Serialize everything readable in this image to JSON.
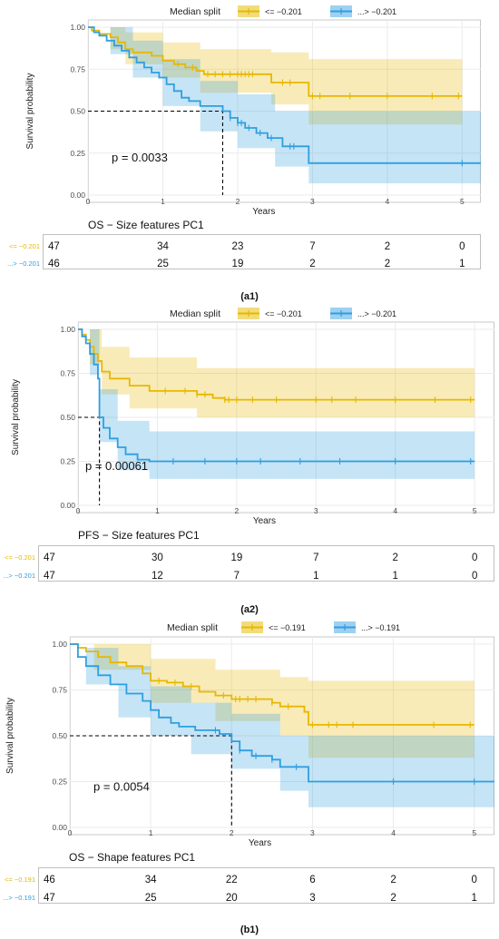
{
  "colors": {
    "group_low": "#E7B800",
    "group_high": "#2E9FDF",
    "band_low": "#F2DC7A",
    "band_high": "#9FD0F1"
  },
  "chart_data": [
    {
      "id": "a1",
      "type": "line",
      "subtype": "kaplan-meier",
      "legend_title": "Median split",
      "legend": [
        "<= −0.201",
        "...> −0.201"
      ],
      "xlabel": "Years",
      "ylabel": "Survival probability",
      "xlim": [
        0,
        5.25
      ],
      "ylim": [
        0,
        1
      ],
      "x_ticks": [
        0,
        1,
        2,
        3,
        4,
        5
      ],
      "y_ticks": [
        "0.00",
        "0.25",
        "0.50",
        "0.75",
        "1.00"
      ],
      "pvalue": "p = 0.0033",
      "median_high": 1.8,
      "series": [
        {
          "name": "<= −0.201",
          "color": "#E7B800",
          "steps": [
            [
              0,
              1.0
            ],
            [
              0.05,
              0.98
            ],
            [
              0.15,
              0.96
            ],
            [
              0.3,
              0.94
            ],
            [
              0.4,
              0.91
            ],
            [
              0.5,
              0.87
            ],
            [
              0.6,
              0.85
            ],
            [
              0.85,
              0.83
            ],
            [
              1.0,
              0.8
            ],
            [
              1.15,
              0.78
            ],
            [
              1.3,
              0.76
            ],
            [
              1.45,
              0.74
            ],
            [
              1.55,
              0.72
            ],
            [
              2.3,
              0.72
            ],
            [
              2.45,
              0.67
            ],
            [
              2.95,
              0.59
            ],
            [
              5.0,
              0.59
            ]
          ],
          "ci_upper": [
            [
              0,
              1.0
            ],
            [
              0.3,
              1.0
            ],
            [
              0.5,
              0.97
            ],
            [
              1.0,
              0.91
            ],
            [
              1.5,
              0.87
            ],
            [
              2.45,
              0.85
            ],
            [
              2.95,
              0.81
            ],
            [
              5.0,
              0.81
            ]
          ],
          "ci_lower": [
            [
              0,
              1.0
            ],
            [
              0.3,
              0.87
            ],
            [
              0.5,
              0.78
            ],
            [
              1.0,
              0.7
            ],
            [
              1.5,
              0.61
            ],
            [
              2.45,
              0.54
            ],
            [
              2.95,
              0.42
            ],
            [
              5.0,
              0.42
            ]
          ],
          "censor": [
            1.2,
            1.4,
            1.6,
            1.7,
            1.8,
            1.9,
            2.0,
            2.05,
            2.1,
            2.15,
            2.2,
            2.6,
            2.7,
            3.0,
            3.1,
            3.5,
            4.0,
            4.6,
            4.95
          ]
        },
        {
          "name": "...> −0.201",
          "color": "#2E9FDF",
          "steps": [
            [
              0,
              1.0
            ],
            [
              0.08,
              0.97
            ],
            [
              0.15,
              0.95
            ],
            [
              0.25,
              0.92
            ],
            [
              0.35,
              0.89
            ],
            [
              0.45,
              0.86
            ],
            [
              0.55,
              0.82
            ],
            [
              0.65,
              0.79
            ],
            [
              0.75,
              0.76
            ],
            [
              0.85,
              0.73
            ],
            [
              0.95,
              0.7
            ],
            [
              1.05,
              0.66
            ],
            [
              1.15,
              0.62
            ],
            [
              1.25,
              0.58
            ],
            [
              1.35,
              0.56
            ],
            [
              1.5,
              0.53
            ],
            [
              1.8,
              0.5
            ],
            [
              1.9,
              0.46
            ],
            [
              2.0,
              0.43
            ],
            [
              2.1,
              0.4
            ],
            [
              2.25,
              0.37
            ],
            [
              2.4,
              0.34
            ],
            [
              2.6,
              0.29
            ],
            [
              2.95,
              0.19
            ],
            [
              5.25,
              0.19
            ]
          ],
          "ci_upper": [
            [
              0,
              1.0
            ],
            [
              0.3,
              1.0
            ],
            [
              0.6,
              0.92
            ],
            [
              1.0,
              0.81
            ],
            [
              1.5,
              0.68
            ],
            [
              2.0,
              0.6
            ],
            [
              2.5,
              0.5
            ],
            [
              2.95,
              0.5
            ],
            [
              5.25,
              0.5
            ]
          ],
          "ci_lower": [
            [
              0,
              1.0
            ],
            [
              0.3,
              0.84
            ],
            [
              0.6,
              0.7
            ],
            [
              1.0,
              0.53
            ],
            [
              1.5,
              0.38
            ],
            [
              2.0,
              0.28
            ],
            [
              2.5,
              0.17
            ],
            [
              2.95,
              0.07
            ],
            [
              5.25,
              0.07
            ]
          ],
          "censor": [
            1.9,
            2.0,
            2.05,
            2.15,
            2.3,
            2.45,
            2.7,
            2.75,
            5.0
          ]
        }
      ],
      "risk_table": {
        "title": "OS −  Size features PC1",
        "rows": [
          {
            "label": "<= −0.201",
            "color": "#E7B800",
            "values": [
              47,
              34,
              23,
              7,
              2,
              0
            ]
          },
          {
            "label": "...> −0.201",
            "color": "#2E9FDF",
            "values": [
              46,
              25,
              19,
              2,
              2,
              1
            ]
          }
        ]
      },
      "caption": "(a1)"
    },
    {
      "id": "a2",
      "type": "line",
      "subtype": "kaplan-meier",
      "legend_title": "Median split",
      "legend": [
        "<= −0.201",
        "...> −0.201"
      ],
      "xlabel": "Years",
      "ylabel": "Survival probability",
      "xlim": [
        0,
        5.25
      ],
      "ylim": [
        0,
        1
      ],
      "x_ticks": [
        0,
        1,
        2,
        3,
        4,
        5
      ],
      "y_ticks": [
        "0.00",
        "0.25",
        "0.50",
        "0.75",
        "1.00"
      ],
      "pvalue": "p = 0.00061",
      "median_high": 0.27,
      "series": [
        {
          "name": "<= −0.201",
          "color": "#E7B800",
          "steps": [
            [
              0,
              1.0
            ],
            [
              0.05,
              0.97
            ],
            [
              0.1,
              0.94
            ],
            [
              0.15,
              0.9
            ],
            [
              0.2,
              0.86
            ],
            [
              0.25,
              0.82
            ],
            [
              0.3,
              0.76
            ],
            [
              0.4,
              0.72
            ],
            [
              0.65,
              0.68
            ],
            [
              0.9,
              0.65
            ],
            [
              1.5,
              0.63
            ],
            [
              1.7,
              0.61
            ],
            [
              1.85,
              0.6
            ],
            [
              5.0,
              0.6
            ]
          ],
          "ci_upper": [
            [
              0,
              1.0
            ],
            [
              0.15,
              1.0
            ],
            [
              0.3,
              0.9
            ],
            [
              0.65,
              0.84
            ],
            [
              1.5,
              0.78
            ],
            [
              5.0,
              0.75
            ]
          ],
          "ci_lower": [
            [
              0,
              1.0
            ],
            [
              0.15,
              0.8
            ],
            [
              0.3,
              0.63
            ],
            [
              0.65,
              0.55
            ],
            [
              1.5,
              0.5
            ],
            [
              5.0,
              0.47
            ]
          ],
          "censor": [
            1.1,
            1.35,
            1.5,
            1.6,
            1.85,
            1.9,
            2.0,
            2.2,
            2.5,
            3.0,
            3.2,
            3.5,
            4.0,
            4.5,
            4.95
          ]
        },
        {
          "name": "...> −0.201",
          "color": "#2E9FDF",
          "steps": [
            [
              0,
              1.0
            ],
            [
              0.05,
              0.96
            ],
            [
              0.1,
              0.92
            ],
            [
              0.15,
              0.86
            ],
            [
              0.2,
              0.8
            ],
            [
              0.25,
              0.72
            ],
            [
              0.27,
              0.5
            ],
            [
              0.32,
              0.44
            ],
            [
              0.4,
              0.38
            ],
            [
              0.5,
              0.33
            ],
            [
              0.6,
              0.29
            ],
            [
              0.75,
              0.26
            ],
            [
              0.9,
              0.25
            ],
            [
              5.0,
              0.25
            ]
          ],
          "ci_upper": [
            [
              0,
              1.0
            ],
            [
              0.15,
              1.0
            ],
            [
              0.27,
              0.66
            ],
            [
              0.5,
              0.48
            ],
            [
              0.9,
              0.42
            ],
            [
              5.0,
              0.42
            ]
          ],
          "ci_lower": [
            [
              0,
              1.0
            ],
            [
              0.15,
              0.74
            ],
            [
              0.27,
              0.36
            ],
            [
              0.5,
              0.2
            ],
            [
              0.9,
              0.15
            ],
            [
              5.0,
              0.15
            ]
          ],
          "censor": [
            1.2,
            1.6,
            2.0,
            2.3,
            2.8,
            3.3,
            4.0,
            4.95
          ]
        }
      ],
      "risk_table": {
        "title": "PFS −  Size features PC1",
        "rows": [
          {
            "label": "<= −0.201",
            "color": "#E7B800",
            "values": [
              47,
              30,
              19,
              7,
              2,
              0
            ]
          },
          {
            "label": "...> −0.201",
            "color": "#2E9FDF",
            "values": [
              47,
              12,
              7,
              1,
              1,
              0
            ]
          }
        ]
      },
      "caption": "(a2)"
    },
    {
      "id": "b1",
      "type": "line",
      "subtype": "kaplan-meier",
      "legend_title": "Median split",
      "legend": [
        "<= −0.191",
        "...> −0.191"
      ],
      "xlabel": "Years",
      "ylabel": "Survival probability",
      "xlim": [
        0,
        5.25
      ],
      "ylim": [
        0,
        1
      ],
      "x_ticks": [
        0,
        1,
        2,
        3,
        4,
        5
      ],
      "y_ticks": [
        "0.00",
        "0.25",
        "0.50",
        "0.75",
        "1.00"
      ],
      "pvalue": "p = 0.0054",
      "median_high": 2.0,
      "series": [
        {
          "name": "<= −0.191",
          "color": "#E7B800",
          "steps": [
            [
              0,
              1.0
            ],
            [
              0.1,
              0.98
            ],
            [
              0.2,
              0.96
            ],
            [
              0.35,
              0.93
            ],
            [
              0.5,
              0.9
            ],
            [
              0.7,
              0.88
            ],
            [
              0.9,
              0.84
            ],
            [
              1.0,
              0.8
            ],
            [
              1.2,
              0.79
            ],
            [
              1.4,
              0.77
            ],
            [
              1.6,
              0.74
            ],
            [
              1.8,
              0.72
            ],
            [
              2.0,
              0.7
            ],
            [
              2.5,
              0.68
            ],
            [
              2.6,
              0.66
            ],
            [
              2.9,
              0.63
            ],
            [
              2.95,
              0.56
            ],
            [
              5.0,
              0.56
            ]
          ],
          "ci_upper": [
            [
              0,
              1.0
            ],
            [
              0.3,
              1.0
            ],
            [
              1.0,
              0.92
            ],
            [
              1.8,
              0.86
            ],
            [
              2.6,
              0.82
            ],
            [
              2.95,
              0.8
            ],
            [
              5.0,
              0.8
            ]
          ],
          "ci_lower": [
            [
              0,
              1.0
            ],
            [
              0.3,
              0.86
            ],
            [
              1.0,
              0.68
            ],
            [
              1.8,
              0.58
            ],
            [
              2.6,
              0.5
            ],
            [
              2.95,
              0.38
            ],
            [
              5.0,
              0.38
            ]
          ],
          "censor": [
            1.1,
            1.3,
            1.5,
            1.9,
            2.05,
            2.1,
            2.2,
            2.3,
            2.5,
            2.7,
            3.0,
            3.2,
            3.3,
            3.5,
            4.5,
            4.95
          ]
        },
        {
          "name": "...> −0.191",
          "color": "#2E9FDF",
          "steps": [
            [
              0,
              1.0
            ],
            [
              0.1,
              0.93
            ],
            [
              0.2,
              0.88
            ],
            [
              0.35,
              0.83
            ],
            [
              0.5,
              0.78
            ],
            [
              0.7,
              0.73
            ],
            [
              0.9,
              0.69
            ],
            [
              1.0,
              0.64
            ],
            [
              1.1,
              0.6
            ],
            [
              1.25,
              0.57
            ],
            [
              1.35,
              0.55
            ],
            [
              1.55,
              0.53
            ],
            [
              1.85,
              0.51
            ],
            [
              2.0,
              0.47
            ],
            [
              2.1,
              0.42
            ],
            [
              2.25,
              0.39
            ],
            [
              2.5,
              0.37
            ],
            [
              2.6,
              0.33
            ],
            [
              2.95,
              0.25
            ],
            [
              5.25,
              0.25
            ]
          ],
          "ci_upper": [
            [
              0,
              1.0
            ],
            [
              0.2,
              0.98
            ],
            [
              0.6,
              0.88
            ],
            [
              1.0,
              0.77
            ],
            [
              1.5,
              0.68
            ],
            [
              2.0,
              0.62
            ],
            [
              2.6,
              0.5
            ],
            [
              2.95,
              0.5
            ],
            [
              5.25,
              0.5
            ]
          ],
          "ci_lower": [
            [
              0,
              1.0
            ],
            [
              0.2,
              0.78
            ],
            [
              0.6,
              0.6
            ],
            [
              1.0,
              0.5
            ],
            [
              1.5,
              0.4
            ],
            [
              2.0,
              0.32
            ],
            [
              2.6,
              0.2
            ],
            [
              2.95,
              0.11
            ],
            [
              5.25,
              0.11
            ]
          ],
          "censor": [
            1.8,
            2.1,
            2.3,
            2.5,
            2.8,
            4.0,
            5.0
          ]
        }
      ],
      "risk_table": {
        "title": "OS −  Shape features PC1",
        "rows": [
          {
            "label": "<= −0.191",
            "color": "#E7B800",
            "values": [
              46,
              34,
              22,
              6,
              2,
              0
            ]
          },
          {
            "label": "...> −0.191",
            "color": "#2E9FDF",
            "values": [
              47,
              25,
              20,
              3,
              2,
              1
            ]
          }
        ]
      },
      "caption": "(b1)"
    }
  ]
}
